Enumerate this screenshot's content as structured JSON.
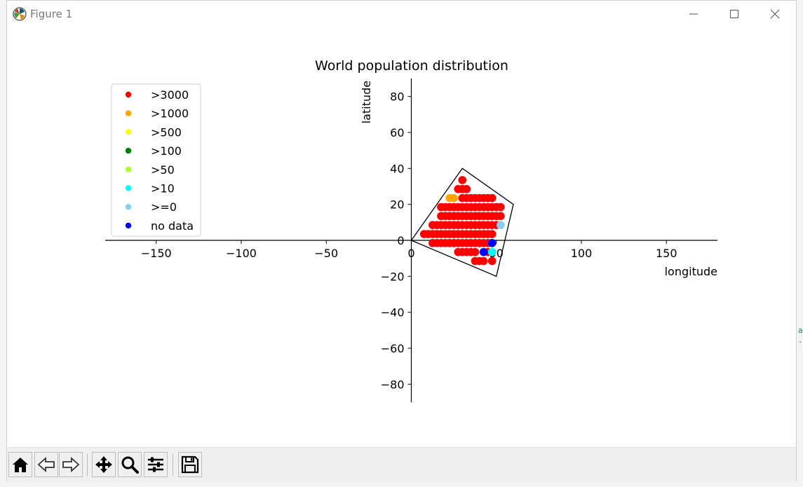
{
  "window": {
    "title": "Figure 1",
    "icons": {
      "app": "matplotlib-logo-icon",
      "minimize": "minimize-icon",
      "maximize": "maximize-icon",
      "close": "close-icon"
    }
  },
  "toolbar": {
    "buttons": [
      {
        "name": "home-button",
        "icon": "home-icon"
      },
      {
        "name": "back-button",
        "icon": "back-arrow-icon"
      },
      {
        "name": "forward-button",
        "icon": "forward-arrow-icon"
      },
      {
        "name": "pan-button",
        "icon": "move-icon"
      },
      {
        "name": "zoom-button",
        "icon": "magnifier-icon"
      },
      {
        "name": "configure-subplots-button",
        "icon": "sliders-icon"
      },
      {
        "name": "save-button",
        "icon": "floppy-disk-icon"
      }
    ]
  },
  "chart_data": {
    "type": "scatter",
    "title": "World population distribution",
    "xlabel": "longitude",
    "ylabel": "latitude",
    "xlim": [
      -180,
      180
    ],
    "ylim": [
      -90,
      90
    ],
    "xticks": [
      -150,
      -100,
      -50,
      0,
      50,
      100,
      150
    ],
    "xtick_labels": [
      "−150",
      "−100",
      "−50",
      "0",
      "50",
      "100",
      "150"
    ],
    "yticks": [
      -80,
      -60,
      -40,
      -20,
      0,
      20,
      40,
      60,
      80
    ],
    "ytick_labels": [
      "−80",
      "−60",
      "−40",
      "−20",
      "0",
      "20",
      "40",
      "60",
      "80"
    ],
    "grid": false,
    "legend_position": "top-left",
    "legend": [
      {
        "label": ">3000",
        "color": "#ff0000"
      },
      {
        "label": ">1000",
        "color": "#ffa500"
      },
      {
        "label": ">500",
        "color": "#ffff00"
      },
      {
        "label": ">100",
        "color": "#008000"
      },
      {
        "label": ">50",
        "color": "#adff2f"
      },
      {
        "label": ">10",
        "color": "#00ffff"
      },
      {
        "label": ">=0",
        "color": "#87ceeb"
      },
      {
        "label": "no data",
        "color": "#0000ff"
      }
    ],
    "region_outline": [
      [
        0,
        0
      ],
      [
        30,
        40
      ],
      [
        60,
        20
      ],
      [
        50,
        -20
      ],
      [
        0,
        0
      ]
    ],
    "series": [
      {
        "name": ">3000",
        "color": "#ff0000",
        "points": [
          [
            30,
            33.5
          ],
          [
            27.5,
            28.5
          ],
          [
            30,
            28.5
          ],
          [
            32.5,
            28.5
          ],
          [
            30,
            23.5
          ],
          [
            32.5,
            23.5
          ],
          [
            35,
            23.5
          ],
          [
            37.5,
            23.5
          ],
          [
            40,
            23.5
          ],
          [
            42.5,
            23.5
          ],
          [
            45,
            23.5
          ],
          [
            47.5,
            23.5
          ],
          [
            17.5,
            18.5
          ],
          [
            20,
            18.5
          ],
          [
            22.5,
            18.5
          ],
          [
            25,
            18.5
          ],
          [
            27.5,
            18.5
          ],
          [
            30,
            18.5
          ],
          [
            32.5,
            18.5
          ],
          [
            35,
            18.5
          ],
          [
            37.5,
            18.5
          ],
          [
            40,
            18.5
          ],
          [
            42.5,
            18.5
          ],
          [
            45,
            18.5
          ],
          [
            47.5,
            18.5
          ],
          [
            50,
            18.5
          ],
          [
            52.5,
            18.5
          ],
          [
            17.5,
            13.5
          ],
          [
            20,
            13.5
          ],
          [
            22.5,
            13.5
          ],
          [
            25,
            13.5
          ],
          [
            27.5,
            13.5
          ],
          [
            30,
            13.5
          ],
          [
            32.5,
            13.5
          ],
          [
            35,
            13.5
          ],
          [
            37.5,
            13.5
          ],
          [
            40,
            13.5
          ],
          [
            42.5,
            13.5
          ],
          [
            45,
            13.5
          ],
          [
            47.5,
            13.5
          ],
          [
            50,
            13.5
          ],
          [
            52.5,
            13.5
          ],
          [
            12.5,
            8.5
          ],
          [
            15,
            8.5
          ],
          [
            17.5,
            8.5
          ],
          [
            20,
            8.5
          ],
          [
            22.5,
            8.5
          ],
          [
            25,
            8.5
          ],
          [
            27.5,
            8.5
          ],
          [
            30,
            8.5
          ],
          [
            32.5,
            8.5
          ],
          [
            35,
            8.5
          ],
          [
            37.5,
            8.5
          ],
          [
            40,
            8.5
          ],
          [
            42.5,
            8.5
          ],
          [
            45,
            8.5
          ],
          [
            47.5,
            8.5
          ],
          [
            50,
            8.5
          ],
          [
            7.5,
            3.5
          ],
          [
            10,
            3.5
          ],
          [
            12.5,
            3.5
          ],
          [
            15,
            3.5
          ],
          [
            17.5,
            3.5
          ],
          [
            20,
            3.5
          ],
          [
            22.5,
            3.5
          ],
          [
            25,
            3.5
          ],
          [
            27.5,
            3.5
          ],
          [
            30,
            3.5
          ],
          [
            32.5,
            3.5
          ],
          [
            35,
            3.5
          ],
          [
            37.5,
            3.5
          ],
          [
            40,
            3.5
          ],
          [
            42.5,
            3.5
          ],
          [
            45,
            3.5
          ],
          [
            47.5,
            3.5
          ],
          [
            12.5,
            -1.5
          ],
          [
            15,
            -1.5
          ],
          [
            17.5,
            -1.5
          ],
          [
            20,
            -1.5
          ],
          [
            22.5,
            -1.5
          ],
          [
            25,
            -1.5
          ],
          [
            27.5,
            -1.5
          ],
          [
            30,
            -1.5
          ],
          [
            32.5,
            -1.5
          ],
          [
            35,
            -1.5
          ],
          [
            37.5,
            -1.5
          ],
          [
            40,
            -1.5
          ],
          [
            42.5,
            -1.5
          ],
          [
            45,
            -1.5
          ],
          [
            27.5,
            -6.5
          ],
          [
            30,
            -6.5
          ],
          [
            32.5,
            -6.5
          ],
          [
            35,
            -6.5
          ],
          [
            37.5,
            -6.5
          ],
          [
            45,
            -6.5
          ],
          [
            37.5,
            -11.5
          ],
          [
            40,
            -11.5
          ],
          [
            42.5,
            -11.5
          ],
          [
            47.5,
            -11.5
          ]
        ]
      },
      {
        "name": ">1000",
        "color": "#ffa500",
        "points": [
          [
            22.5,
            23.5
          ],
          [
            25,
            23.5
          ]
        ]
      },
      {
        "name": ">10",
        "color": "#00ffff",
        "points": [
          [
            47.5,
            -6.5
          ]
        ]
      },
      {
        "name": ">=0",
        "color": "#87ceeb",
        "points": [
          [
            52.5,
            8.5
          ]
        ]
      },
      {
        "name": "no data",
        "color": "#0000ff",
        "points": [
          [
            47.5,
            -1.5
          ],
          [
            42.5,
            -6.5
          ]
        ]
      }
    ]
  }
}
